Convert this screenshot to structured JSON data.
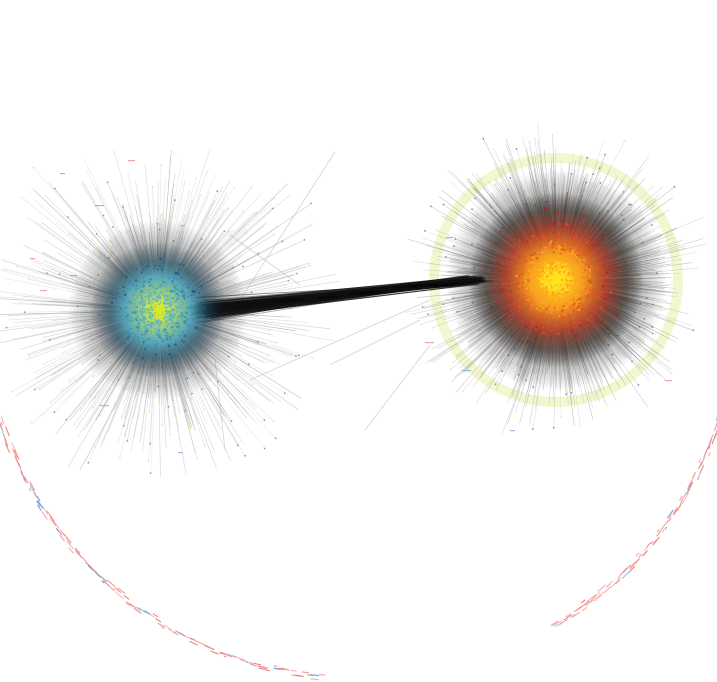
{
  "figure": {
    "kind": "network-graph",
    "background_color": "#ffffff"
  },
  "clusters": [
    {
      "id": "left-cluster",
      "core_colors": [
        "#d9e82a",
        "#5fb6c4",
        "#3a8fb0",
        "#1e5a78"
      ],
      "edge_color": "#9a9a9a",
      "halo_color": "#e6eb9a",
      "density": "high"
    },
    {
      "id": "right-cluster",
      "core_colors": [
        "#ffe21a",
        "#ffa320",
        "#e2541c",
        "#b8201a"
      ],
      "edge_color": "#8e8e8e",
      "halo_color": "#e9f0a8",
      "density": "high"
    }
  ],
  "bridge": {
    "from": "left-cluster",
    "to": "right-cluster",
    "color": "#111111"
  },
  "peripheral_arcs": {
    "color": "#f08080",
    "accent_color": "#6aa0d8"
  }
}
